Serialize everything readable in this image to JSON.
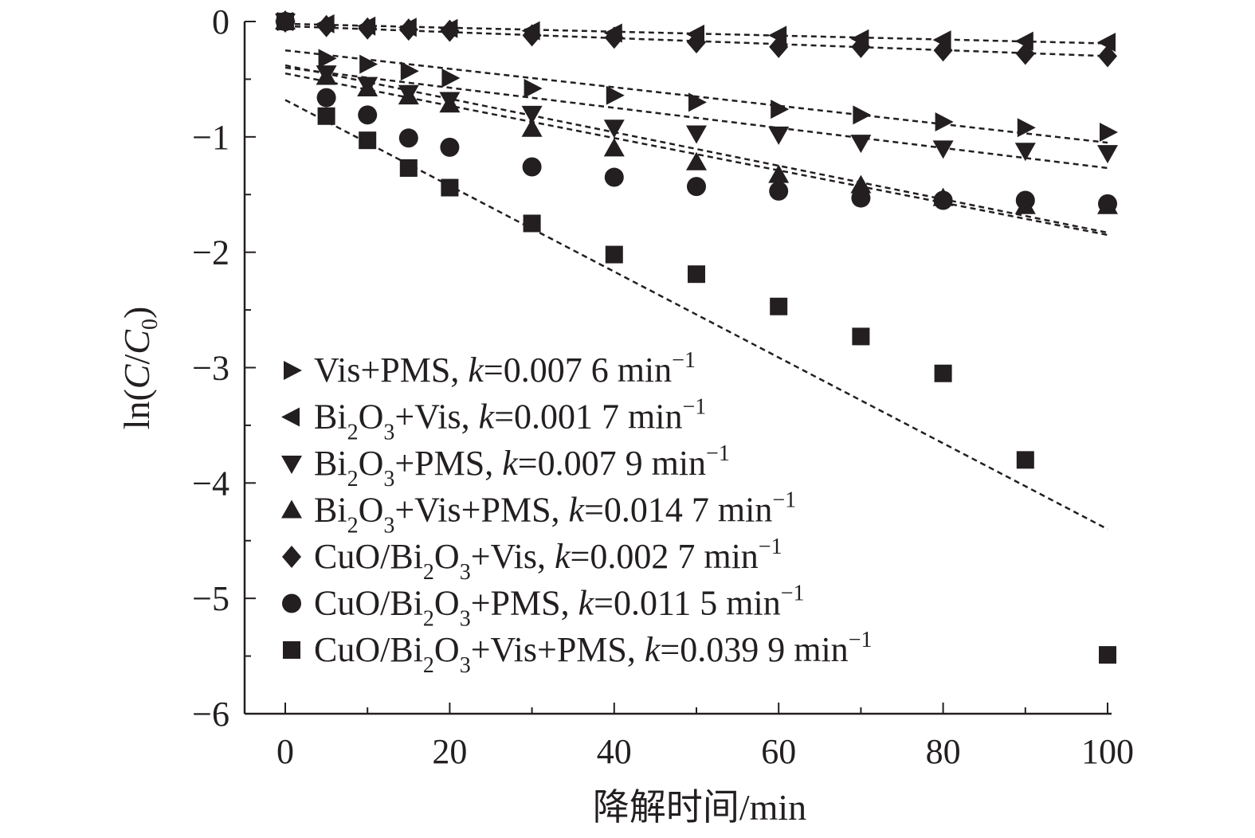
{
  "chart_data": {
    "type": "scatter",
    "xlabel": "降解时间/min",
    "ylabel": {
      "pre": "ln(",
      "c": "C",
      "slash": "/",
      "c0": "C",
      "c0_sub": "0",
      "post": ")"
    },
    "xlim": [
      0,
      100
    ],
    "ylim": [
      -6,
      0
    ],
    "x_ticks": [
      0,
      20,
      40,
      60,
      80,
      100
    ],
    "x_tick_labels": [
      "0",
      "20",
      "40",
      "60",
      "80",
      "100"
    ],
    "y_ticks": [
      0,
      -1,
      -2,
      -3,
      -4,
      -5,
      -6
    ],
    "y_tick_labels": [
      "0",
      "−1",
      "−2",
      "−3",
      "−4",
      "−5",
      "−6"
    ],
    "grid": false,
    "legend_position": "bottom-left",
    "x": [
      0,
      5,
      10,
      15,
      20,
      30,
      40,
      50,
      60,
      70,
      80,
      90,
      100
    ],
    "series": [
      {
        "marker": "triangle-right",
        "label": [
          {
            "t": "Vis+PMS, "
          },
          {
            "t": "k",
            "i": true
          },
          {
            "t": "=0.007 6 min"
          },
          {
            "t": "−1",
            "sup": true
          }
        ],
        "values": [
          0,
          -0.32,
          -0.37,
          -0.43,
          -0.49,
          -0.58,
          -0.64,
          -0.7,
          -0.76,
          -0.81,
          -0.87,
          -0.92,
          -0.96
        ],
        "fit": [
          [
            0,
            -0.25
          ],
          [
            100,
            -1.05
          ]
        ]
      },
      {
        "marker": "triangle-left",
        "label": [
          {
            "t": "Bi"
          },
          {
            "t": "2",
            "sub": true
          },
          {
            "t": "O"
          },
          {
            "t": "3",
            "sub": true
          },
          {
            "t": "+Vis, "
          },
          {
            "t": "k",
            "i": true
          },
          {
            "t": "=0.001 7 min"
          },
          {
            "t": "−1",
            "sup": true
          }
        ],
        "values": [
          0,
          -0.02,
          -0.04,
          -0.05,
          -0.06,
          -0.08,
          -0.1,
          -0.11,
          -0.12,
          -0.15,
          -0.16,
          -0.17,
          -0.18
        ],
        "fit": [
          [
            0,
            -0.02
          ],
          [
            100,
            -0.19
          ]
        ]
      },
      {
        "marker": "triangle-down",
        "label": [
          {
            "t": "Bi"
          },
          {
            "t": "2",
            "sub": true
          },
          {
            "t": "O"
          },
          {
            "t": "3",
            "sub": true
          },
          {
            "t": "+PMS, "
          },
          {
            "t": "k",
            "i": true
          },
          {
            "t": "=0.007 9 min"
          },
          {
            "t": "−1",
            "sup": true
          }
        ],
        "values": [
          0,
          -0.45,
          -0.55,
          -0.62,
          -0.68,
          -0.8,
          -0.92,
          -0.97,
          -0.98,
          -1.05,
          -1.1,
          -1.12,
          -1.14
        ],
        "fit": [
          [
            0,
            -0.4
          ],
          [
            100,
            -1.27
          ]
        ]
      },
      {
        "marker": "triangle-up",
        "label": [
          {
            "t": "Bi"
          },
          {
            "t": "2",
            "sub": true
          },
          {
            "t": "O"
          },
          {
            "t": "3",
            "sub": true
          },
          {
            "t": "+Vis+PMS, "
          },
          {
            "t": "k",
            "i": true
          },
          {
            "t": "=0.014 7 min"
          },
          {
            "t": "−1",
            "sup": true
          }
        ],
        "values": [
          0,
          -0.48,
          -0.58,
          -0.65,
          -0.72,
          -0.93,
          -1.1,
          -1.22,
          -1.33,
          -1.42,
          -1.53,
          -1.6,
          -1.6
        ],
        "fit": [
          [
            0,
            -0.38
          ],
          [
            100,
            -1.83
          ]
        ]
      },
      {
        "marker": "diamond",
        "label": [
          {
            "t": "CuO/Bi"
          },
          {
            "t": "2",
            "sub": true
          },
          {
            "t": "O"
          },
          {
            "t": "3",
            "sub": true
          },
          {
            "t": "+Vis, "
          },
          {
            "t": "k",
            "i": true
          },
          {
            "t": "=0.002 7 min"
          },
          {
            "t": "−1",
            "sup": true
          }
        ],
        "values": [
          0,
          -0.04,
          -0.06,
          -0.07,
          -0.08,
          -0.12,
          -0.14,
          -0.18,
          -0.22,
          -0.22,
          -0.25,
          -0.28,
          -0.3
        ],
        "fit": [
          [
            0,
            -0.04
          ],
          [
            100,
            -0.3
          ]
        ]
      },
      {
        "marker": "circle",
        "label": [
          {
            "t": "CuO/Bi"
          },
          {
            "t": "2",
            "sub": true
          },
          {
            "t": "O"
          },
          {
            "t": "3",
            "sub": true
          },
          {
            "t": "+PMS, "
          },
          {
            "t": "k",
            "i": true
          },
          {
            "t": "=0.011 5 min"
          },
          {
            "t": "−1",
            "sup": true
          }
        ],
        "values": [
          0,
          -0.66,
          -0.81,
          -1.01,
          -1.09,
          -1.26,
          -1.35,
          -1.43,
          -1.47,
          -1.53,
          -1.55,
          -1.55,
          -1.58
        ],
        "fit": [
          [
            0,
            -0.45
          ],
          [
            100,
            -1.85
          ]
        ]
      },
      {
        "marker": "square",
        "label": [
          {
            "t": "CuO/Bi"
          },
          {
            "t": "2",
            "sub": true
          },
          {
            "t": "O"
          },
          {
            "t": "3",
            "sub": true
          },
          {
            "t": "+Vis+PMS, "
          },
          {
            "t": "k",
            "i": true
          },
          {
            "t": "=0.039 9 min"
          },
          {
            "t": "−1",
            "sup": true
          }
        ],
        "values": [
          0,
          -0.82,
          -1.03,
          -1.27,
          -1.44,
          -1.75,
          -2.02,
          -2.19,
          -2.47,
          -2.73,
          -3.05,
          -3.8,
          -5.49
        ],
        "fit": [
          [
            0,
            -0.68
          ],
          [
            100,
            -4.4
          ]
        ]
      }
    ]
  }
}
